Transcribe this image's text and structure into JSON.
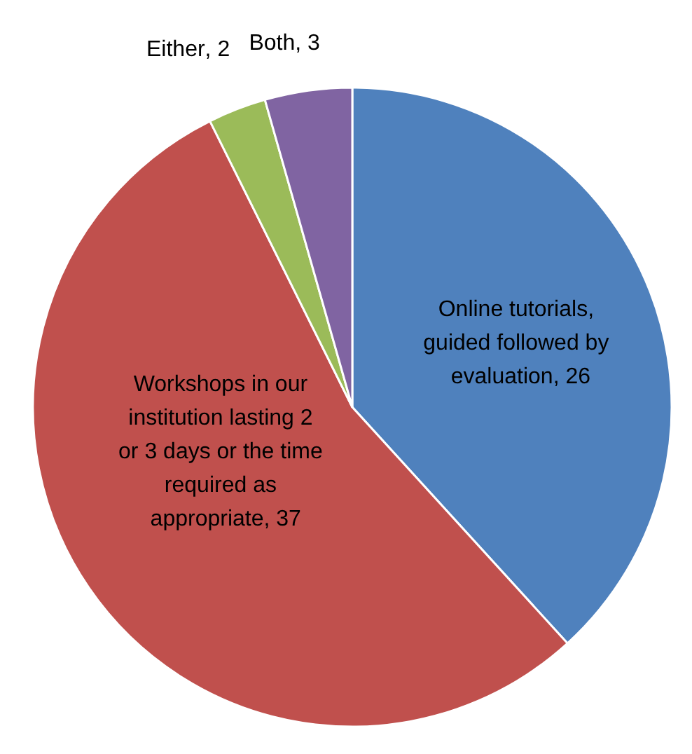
{
  "chart_data": {
    "type": "pie",
    "categories": [
      "Online tutorials, guided followed by evaluation",
      "Workshops in our institution lasting 2 or 3 days or the time required as appropriate",
      "Either",
      "Both"
    ],
    "values": [
      26,
      37,
      2,
      3
    ],
    "value_labels": [
      ", 26",
      ", 37",
      ", 2",
      ", 3"
    ],
    "colors": [
      "#4f81bd",
      "#c0504d",
      "#9bbb59",
      "#8064a2"
    ]
  }
}
